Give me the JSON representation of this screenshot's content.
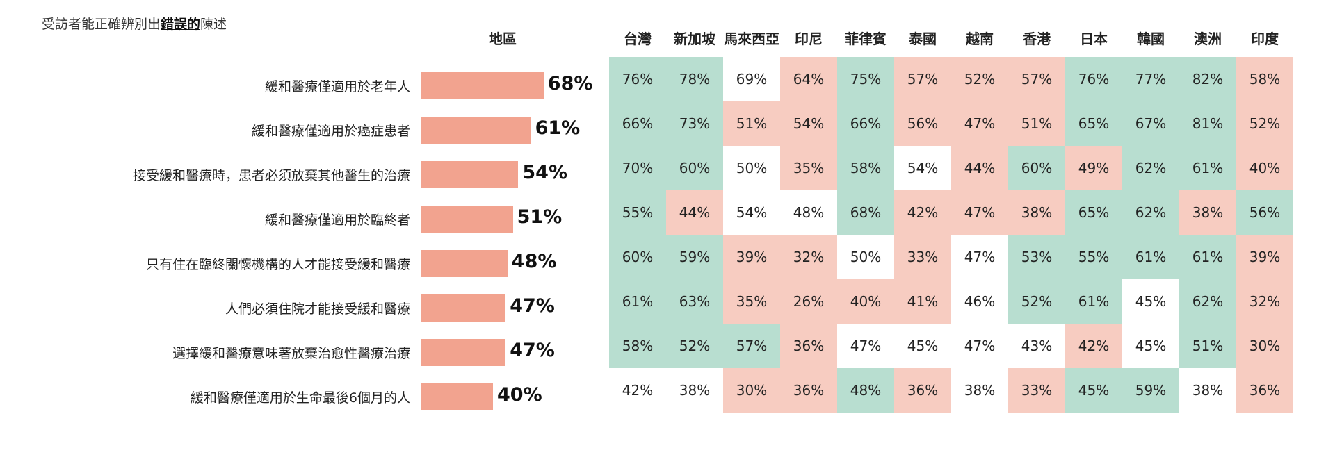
{
  "subtitle": {
    "prefix": "受訪者能正確辨別出",
    "emphasis": "錯誤的",
    "suffix": "陳述"
  },
  "colors": {
    "bar": "#f2a38f",
    "green": "#b8ded0",
    "pink": "#f7ccc1",
    "white": "#ffffff"
  },
  "chart_data": {
    "type": "table",
    "region_header": "地區",
    "countries": [
      "台灣",
      "新加坡",
      "馬來西亞",
      "印尼",
      "菲律賓",
      "泰國",
      "越南",
      "香港",
      "日本",
      "韓國",
      "澳洲",
      "印度"
    ],
    "statements": [
      "緩和醫療僅適用於老年人",
      "緩和醫療僅適用於癌症患者",
      "接受緩和醫療時，患者必須放棄其他醫生的治療",
      "緩和醫療僅適用於臨終者",
      "只有住在臨終關懷機構的人才能接受緩和醫療",
      "人們必須住院才能接受緩和醫療",
      "選擇緩和醫療意味著放棄治愈性醫療治療",
      "緩和醫療僅適用於生命最後6個月的人"
    ],
    "overall": [
      68,
      61,
      54,
      51,
      48,
      47,
      47,
      40
    ],
    "overall_labels": [
      "68%",
      "61%",
      "54%",
      "51%",
      "48%",
      "47%",
      "47%",
      "40%"
    ],
    "values": [
      [
        "76%",
        "78%",
        "69%",
        "64%",
        "75%",
        "57%",
        "52%",
        "57%",
        "76%",
        "77%",
        "82%",
        "58%"
      ],
      [
        "66%",
        "73%",
        "51%",
        "54%",
        "66%",
        "56%",
        "47%",
        "51%",
        "65%",
        "67%",
        "81%",
        "52%"
      ],
      [
        "70%",
        "60%",
        "50%",
        "35%",
        "58%",
        "54%",
        "44%",
        "60%",
        "49%",
        "62%",
        "61%",
        "40%"
      ],
      [
        "55%",
        "44%",
        "54%",
        "48%",
        "68%",
        "42%",
        "47%",
        "38%",
        "65%",
        "62%",
        "38%",
        "56%"
      ],
      [
        "60%",
        "59%",
        "39%",
        "32%",
        "50%",
        "33%",
        "47%",
        "53%",
        "55%",
        "61%",
        "61%",
        "39%"
      ],
      [
        "61%",
        "63%",
        "35%",
        "26%",
        "40%",
        "41%",
        "46%",
        "52%",
        "61%",
        "45%",
        "62%",
        "32%"
      ],
      [
        "58%",
        "52%",
        "57%",
        "36%",
        "47%",
        "45%",
        "47%",
        "43%",
        "42%",
        "45%",
        "51%",
        "30%"
      ],
      [
        "42%",
        "38%",
        "30%",
        "36%",
        "48%",
        "36%",
        "38%",
        "33%",
        "45%",
        "59%",
        "38%",
        "36%"
      ]
    ],
    "cell_colors": [
      [
        "g",
        "g",
        "w",
        "p",
        "g",
        "p",
        "p",
        "p",
        "g",
        "g",
        "g",
        "p"
      ],
      [
        "g",
        "g",
        "p",
        "p",
        "g",
        "p",
        "p",
        "p",
        "g",
        "g",
        "g",
        "p"
      ],
      [
        "g",
        "g",
        "w",
        "p",
        "g",
        "w",
        "p",
        "g",
        "p",
        "g",
        "g",
        "p"
      ],
      [
        "g",
        "p",
        "w",
        "w",
        "g",
        "p",
        "p",
        "p",
        "g",
        "g",
        "p",
        "g"
      ],
      [
        "g",
        "g",
        "p",
        "p",
        "w",
        "p",
        "w",
        "g",
        "g",
        "g",
        "g",
        "p"
      ],
      [
        "g",
        "g",
        "p",
        "p",
        "p",
        "p",
        "w",
        "g",
        "g",
        "w",
        "g",
        "p"
      ],
      [
        "g",
        "g",
        "g",
        "p",
        "w",
        "w",
        "w",
        "w",
        "p",
        "w",
        "g",
        "p"
      ],
      [
        "w",
        "w",
        "p",
        "p",
        "g",
        "p",
        "w",
        "p",
        "g",
        "g",
        "w",
        "p"
      ]
    ]
  }
}
